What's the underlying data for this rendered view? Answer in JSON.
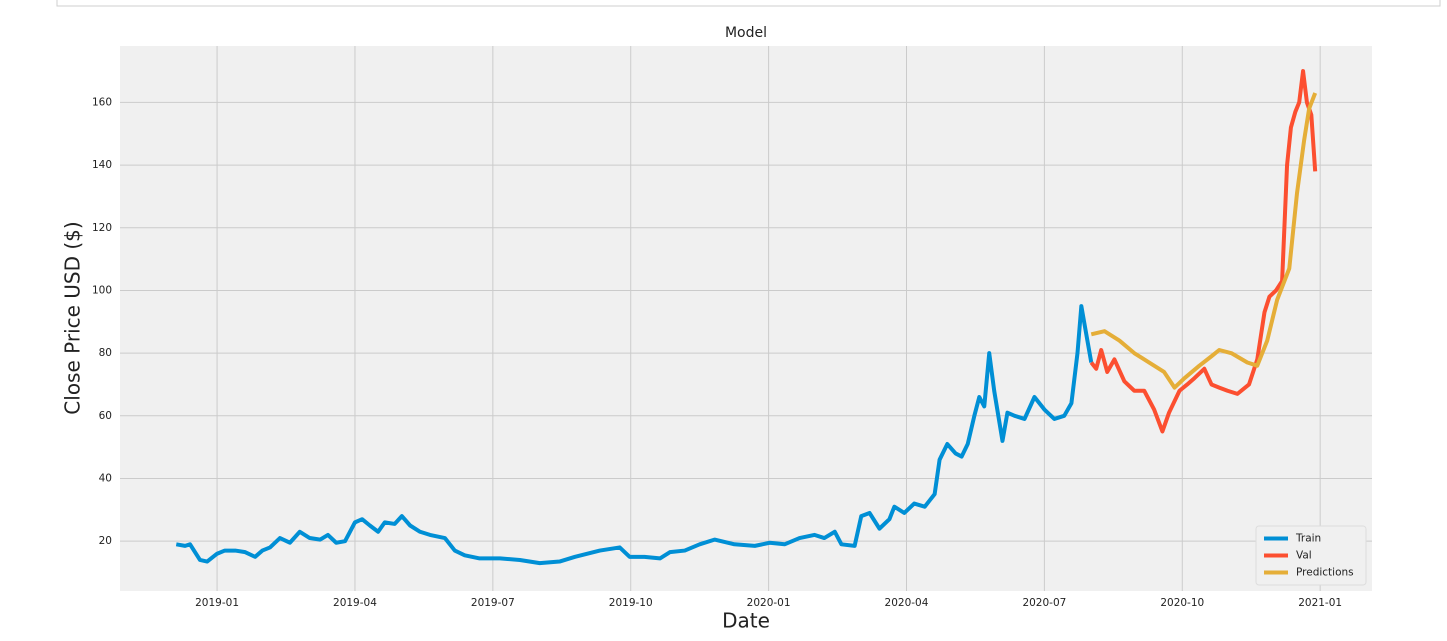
{
  "chart_data": {
    "type": "line",
    "title": "Model",
    "x_label": "Date",
    "y_label": "Close Price USD ($)",
    "xlim": [
      2018.824,
      2021.094
    ],
    "ylim": [
      4.1,
      178
    ],
    "xticks": [
      {
        "value": 2019.0,
        "label": "2019-01"
      },
      {
        "value": 2019.25,
        "label": "2019-04"
      },
      {
        "value": 2019.5,
        "label": "2019-07"
      },
      {
        "value": 2019.75,
        "label": "2019-10"
      },
      {
        "value": 2020.0,
        "label": "2020-01"
      },
      {
        "value": 2020.25,
        "label": "2020-04"
      },
      {
        "value": 2020.5,
        "label": "2020-07"
      },
      {
        "value": 2020.75,
        "label": "2020-10"
      },
      {
        "value": 2021.0,
        "label": "2021-01"
      }
    ],
    "yticks": [
      20,
      40,
      60,
      80,
      100,
      120,
      140,
      160
    ],
    "grid": true,
    "legend": "lower right",
    "series": [
      {
        "name": "Train",
        "color": "#008fd5",
        "x": [
          2018.926,
          2018.942,
          2018.951,
          2018.969,
          2018.982,
          2019.0,
          2019.014,
          2019.033,
          2019.051,
          2019.069,
          2019.082,
          2019.096,
          2019.114,
          2019.132,
          2019.15,
          2019.168,
          2019.187,
          2019.201,
          2019.216,
          2019.232,
          2019.25,
          2019.263,
          2019.277,
          2019.292,
          2019.304,
          2019.322,
          2019.335,
          2019.35,
          2019.368,
          2019.386,
          2019.413,
          2019.431,
          2019.449,
          2019.476,
          2019.513,
          2019.549,
          2019.585,
          2019.621,
          2019.649,
          2019.694,
          2019.73,
          2019.748,
          2019.775,
          2019.803,
          2019.821,
          2019.848,
          2019.875,
          2019.902,
          2019.938,
          2019.975,
          2020.002,
          2020.029,
          2020.056,
          2020.083,
          2020.101,
          2020.12,
          2020.132,
          2020.156,
          2020.168,
          2020.183,
          2020.201,
          2020.219,
          2020.228,
          2020.246,
          2020.264,
          2020.283,
          2020.292,
          2020.301,
          2020.31,
          2020.324,
          2020.339,
          2020.35,
          2020.361,
          2020.373,
          2020.382,
          2020.391,
          2020.4,
          2020.409,
          2020.424,
          2020.433,
          2020.446,
          2020.464,
          2020.482,
          2020.5,
          2020.518,
          2020.536,
          2020.549,
          2020.56,
          2020.567,
          2020.578,
          2020.585
        ],
        "values": [
          19,
          18.5,
          19,
          14,
          13.5,
          16,
          17,
          17,
          16.5,
          15,
          17,
          18,
          21,
          19.5,
          23,
          21,
          20.5,
          22,
          19.5,
          20,
          26,
          27,
          25,
          23,
          26,
          25.5,
          28,
          25,
          23,
          22,
          21,
          17,
          15.5,
          14.5,
          14.5,
          14,
          13,
          13.5,
          15,
          17,
          18,
          15,
          15,
          14.5,
          16.5,
          17,
          19,
          20.5,
          19,
          18.5,
          19.5,
          19,
          21,
          22,
          21,
          23,
          19,
          18.5,
          28,
          29,
          24,
          27,
          31,
          29,
          32,
          31,
          33,
          35,
          46,
          51,
          48,
          47,
          51,
          60,
          66,
          63,
          80,
          68,
          52,
          61,
          60,
          59,
          66,
          62,
          59,
          60,
          64,
          80,
          95,
          84,
          77
        ]
      },
      {
        "name": "Val",
        "color": "#fc4f30",
        "x": [
          2020.585,
          2020.594,
          2020.603,
          2020.614,
          2020.627,
          2020.645,
          2020.663,
          2020.681,
          2020.699,
          2020.714,
          2020.726,
          2020.745,
          2020.759,
          2020.772,
          2020.79,
          2020.803,
          2020.817,
          2020.832,
          2020.85,
          2020.871,
          2020.886,
          2020.899,
          2020.908,
          2020.92,
          2020.931,
          2020.94,
          2020.947,
          2020.955,
          2020.962,
          2020.969,
          2020.976,
          2020.984,
          2020.991
        ],
        "values": [
          77,
          75,
          81,
          74,
          78,
          71,
          68,
          68,
          62,
          55,
          61,
          68,
          70,
          72,
          75,
          70,
          69,
          68,
          67,
          70,
          78,
          93,
          98,
          100,
          103,
          140,
          152,
          157,
          160,
          170,
          160,
          156,
          138
        ]
      },
      {
        "name": "Predictions",
        "color": "#e5ae38",
        "x": [
          2020.585,
          2020.609,
          2020.636,
          2020.663,
          2020.69,
          2020.717,
          2020.736,
          2020.754,
          2020.781,
          2020.803,
          2020.817,
          2020.839,
          2020.868,
          2020.886,
          2020.904,
          2020.922,
          2020.944,
          2020.958,
          2020.971,
          2020.98,
          2020.991
        ],
        "values": [
          86,
          87,
          84,
          80,
          77,
          74,
          69,
          72,
          76,
          79,
          81,
          80,
          77,
          76,
          84,
          97,
          107,
          131,
          148,
          158,
          163
        ]
      }
    ]
  }
}
